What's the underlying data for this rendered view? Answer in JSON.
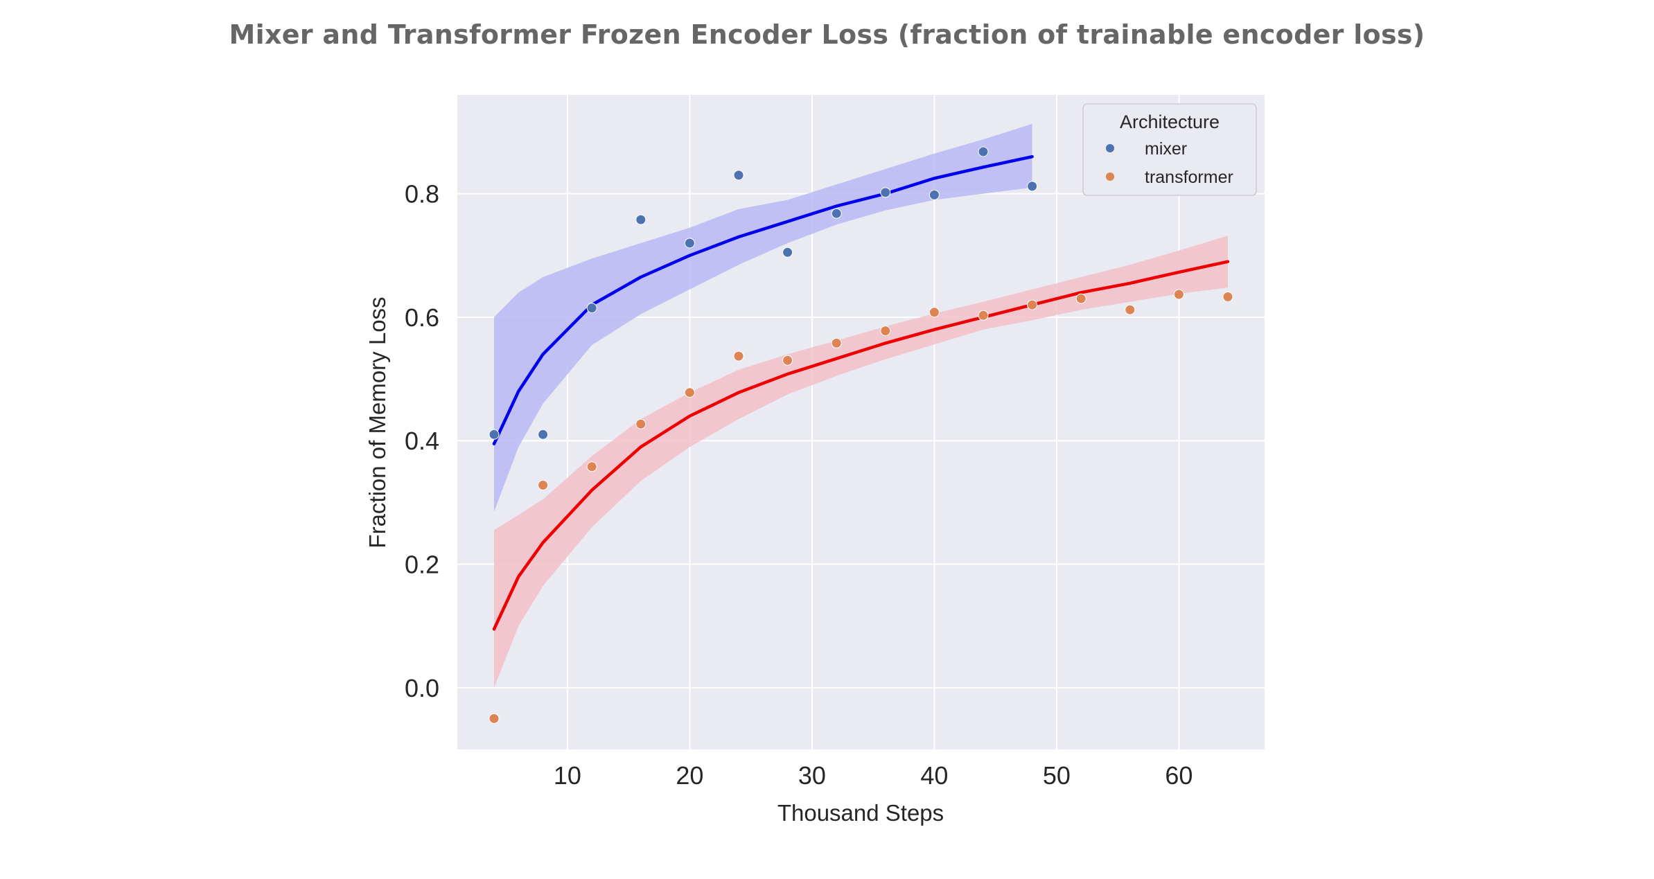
{
  "chart_data": {
    "type": "scatter",
    "title": "Mixer and Transformer Frozen Encoder Loss (fraction of trainable encoder loss)",
    "xlabel": "Thousand Steps",
    "ylabel": "Fraction of Memory Loss",
    "xlim": [
      1,
      67
    ],
    "ylim": [
      -0.1,
      0.96
    ],
    "xticks": [
      10,
      20,
      30,
      40,
      50,
      60
    ],
    "yticks": [
      0.0,
      0.2,
      0.4,
      0.6,
      0.8
    ],
    "ytick_labels": [
      "0.0",
      "0.2",
      "0.4",
      "0.6",
      "0.8"
    ],
    "grid": true,
    "legend": {
      "title": "Architecture",
      "placement": "top-right"
    },
    "series": [
      {
        "name": "mixer",
        "point_color": "#4c72b0",
        "fit_color": "#0000ee",
        "band_color": "#b8b8f5",
        "x": [
          4,
          8,
          12,
          16,
          20,
          24,
          28,
          32,
          36,
          40,
          44,
          48
        ],
        "y": [
          0.41,
          0.41,
          0.615,
          0.758,
          0.72,
          0.83,
          0.705,
          0.768,
          0.802,
          0.798,
          0.868,
          0.812
        ],
        "fit": {
          "x": [
            4,
            6,
            8,
            12,
            16,
            20,
            24,
            28,
            32,
            36,
            40,
            44,
            48
          ],
          "y": [
            0.395,
            0.48,
            0.54,
            0.62,
            0.665,
            0.7,
            0.73,
            0.755,
            0.78,
            0.8,
            0.825,
            0.843,
            0.86
          ],
          "lower": [
            0.285,
            0.39,
            0.46,
            0.555,
            0.605,
            0.645,
            0.685,
            0.72,
            0.75,
            0.773,
            0.79,
            0.8,
            0.81
          ],
          "upper": [
            0.6,
            0.64,
            0.665,
            0.695,
            0.72,
            0.745,
            0.775,
            0.79,
            0.815,
            0.84,
            0.865,
            0.888,
            0.913
          ]
        }
      },
      {
        "name": "transformer",
        "point_color": "#dd8452",
        "fit_color": "#ee0000",
        "band_color": "#f2c0c8",
        "x": [
          4,
          8,
          12,
          16,
          20,
          24,
          28,
          32,
          36,
          40,
          44,
          48,
          52,
          56,
          60,
          64
        ],
        "y": [
          -0.05,
          0.328,
          0.358,
          0.427,
          0.478,
          0.537,
          0.53,
          0.558,
          0.578,
          0.608,
          0.603,
          0.62,
          0.63,
          0.612,
          0.637,
          0.633
        ],
        "fit": {
          "x": [
            4,
            6,
            8,
            12,
            16,
            20,
            24,
            28,
            32,
            36,
            40,
            44,
            48,
            52,
            56,
            60,
            64
          ],
          "y": [
            0.095,
            0.18,
            0.235,
            0.32,
            0.39,
            0.44,
            0.478,
            0.508,
            0.533,
            0.558,
            0.58,
            0.6,
            0.62,
            0.64,
            0.655,
            0.673,
            0.69
          ],
          "lower": [
            0.0,
            0.1,
            0.165,
            0.26,
            0.335,
            0.39,
            0.435,
            0.475,
            0.505,
            0.532,
            0.556,
            0.58,
            0.595,
            0.612,
            0.625,
            0.638,
            0.648
          ],
          "upper": [
            0.255,
            0.28,
            0.305,
            0.375,
            0.435,
            0.478,
            0.515,
            0.54,
            0.562,
            0.585,
            0.606,
            0.625,
            0.645,
            0.665,
            0.685,
            0.708,
            0.732
          ]
        }
      }
    ]
  }
}
